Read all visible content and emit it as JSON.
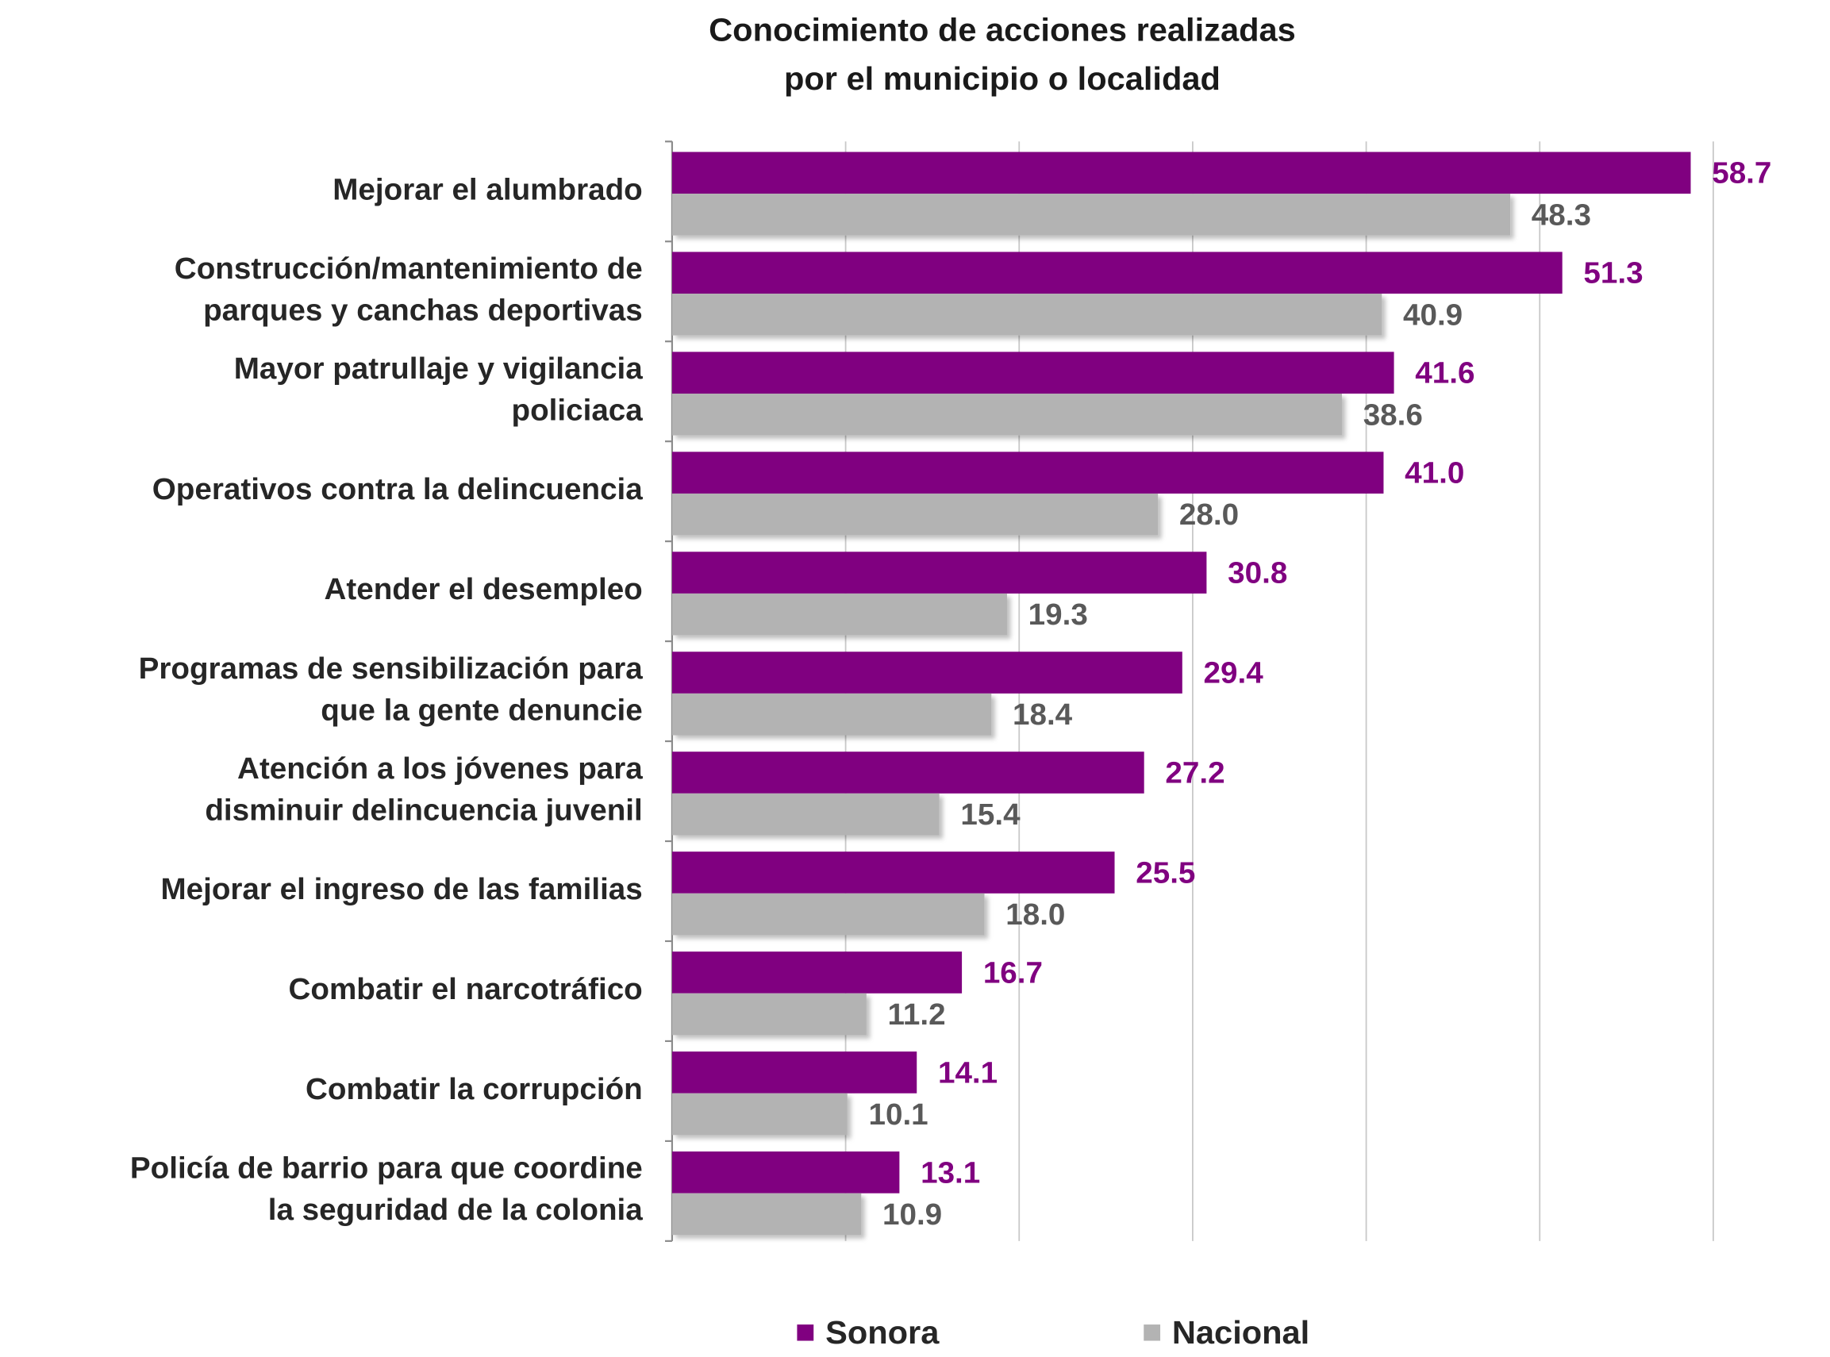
{
  "chart_data": {
    "type": "bar",
    "orientation": "horizontal",
    "title": [
      "Conocimiento de acciones realizadas",
      "por el municipio o localidad"
    ],
    "categories": [
      [
        "Mejorar el alumbrado"
      ],
      [
        "Construcción/mantenimiento de",
        "parques y canchas deportivas"
      ],
      [
        "Mayor patrullaje y vigilancia",
        "policiaca"
      ],
      [
        "Operativos contra la delincuencia"
      ],
      [
        "Atender el desempleo"
      ],
      [
        "Programas de sensibilización para",
        "que la gente denuncie"
      ],
      [
        "Atención a los jóvenes para",
        "disminuir delincuencia juvenil"
      ],
      [
        "Mejorar el ingreso de las familias"
      ],
      [
        "Combatir el narcotráfico"
      ],
      [
        "Combatir la corrupción"
      ],
      [
        "Policía de barrio para que coordine",
        "la seguridad de la colonia"
      ]
    ],
    "series": [
      {
        "name": "Sonora",
        "color": "#800080",
        "label_color": "#800080",
        "values": [
          58.7,
          51.3,
          41.6,
          41.0,
          30.8,
          29.4,
          27.2,
          25.5,
          16.7,
          14.1,
          13.1
        ],
        "value_labels": [
          "58.7",
          "51.3",
          "41.6",
          "41.0",
          "30.8",
          "29.4",
          "27.2",
          "25.5",
          "16.7",
          "14.1",
          "13.1"
        ]
      },
      {
        "name": "Nacional",
        "color": "#b3b3b3",
        "label_color": "#595959",
        "values": [
          48.3,
          40.9,
          38.6,
          28.0,
          19.3,
          18.4,
          15.4,
          18.0,
          11.2,
          10.1,
          10.9
        ],
        "value_labels": [
          "48.3",
          "40.9",
          "38.6",
          "28.0",
          "19.3",
          "18.4",
          "15.4",
          "18.0",
          "11.2",
          "10.1",
          "10.9"
        ]
      }
    ],
    "xlim": [
      0,
      60
    ],
    "xticks": [
      0,
      10,
      20,
      30,
      40,
      50,
      60
    ],
    "grid": true,
    "legend": "bottom"
  }
}
